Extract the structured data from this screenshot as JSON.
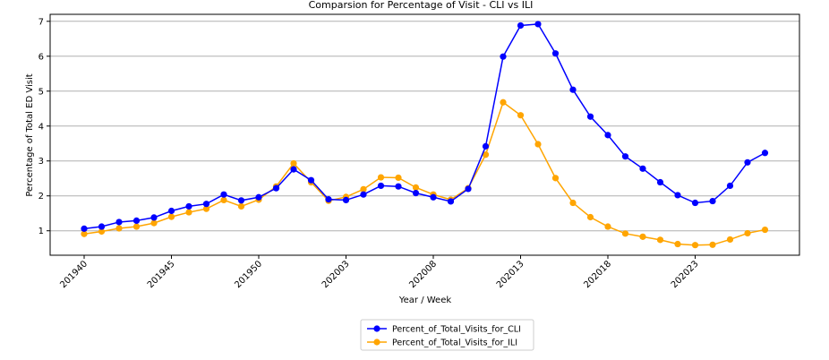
{
  "chart_data": {
    "type": "line",
    "title": "Comparsion for Percentage of Visit - CLI vs ILI",
    "xlabel": "Year / Week",
    "ylabel": "Percentage of Total ED Visit",
    "x_tick_labels": [
      "201940",
      "201945",
      "201950",
      "202003",
      "202008",
      "202013",
      "202018",
      "202023"
    ],
    "y_ticks": [
      1,
      2,
      3,
      4,
      5,
      6,
      7
    ],
    "ylim": [
      0.3,
      7.2
    ],
    "grid": "horizontal",
    "legend_position": "bottom-center",
    "x": [
      "201940",
      "201941",
      "201942",
      "201943",
      "201944",
      "201945",
      "201946",
      "201947",
      "201948",
      "201949",
      "201950",
      "201951",
      "201952",
      "202001",
      "202002",
      "202003",
      "202004",
      "202005",
      "202006",
      "202007",
      "202008",
      "202009",
      "202010",
      "202011",
      "202012",
      "202013",
      "202014",
      "202015",
      "202016",
      "202017",
      "202018",
      "202019",
      "202020",
      "202021",
      "202022",
      "202023",
      "202024",
      "202025",
      "202026",
      "202027"
    ],
    "series": [
      {
        "name": "Percent_of_Total_Visits_for_CLI",
        "color": "#0000ff",
        "values": [
          1.06,
          1.12,
          1.25,
          1.29,
          1.38,
          1.57,
          1.7,
          1.77,
          2.04,
          1.87,
          1.96,
          2.22,
          2.76,
          2.45,
          1.9,
          1.88,
          2.04,
          2.29,
          2.27,
          2.08,
          1.96,
          1.84,
          2.2,
          3.42,
          5.99,
          6.88,
          6.92,
          6.08,
          5.04,
          4.27,
          3.74,
          3.13,
          2.78,
          2.39,
          2.02,
          1.8,
          1.85,
          2.29,
          2.96,
          3.23
        ]
      },
      {
        "name": "Percent_of_Total_Visits_for_ILI",
        "color": "#ffa500",
        "values": [
          0.91,
          0.98,
          1.07,
          1.12,
          1.22,
          1.4,
          1.53,
          1.63,
          1.88,
          1.7,
          1.89,
          2.27,
          2.93,
          2.39,
          1.86,
          1.97,
          2.19,
          2.53,
          2.52,
          2.24,
          2.04,
          1.89,
          2.22,
          3.18,
          4.68,
          4.31,
          3.48,
          2.51,
          1.8,
          1.39,
          1.12,
          0.92,
          0.83,
          0.74,
          0.62,
          0.59,
          0.6,
          0.75,
          0.93,
          1.03
        ]
      }
    ]
  }
}
